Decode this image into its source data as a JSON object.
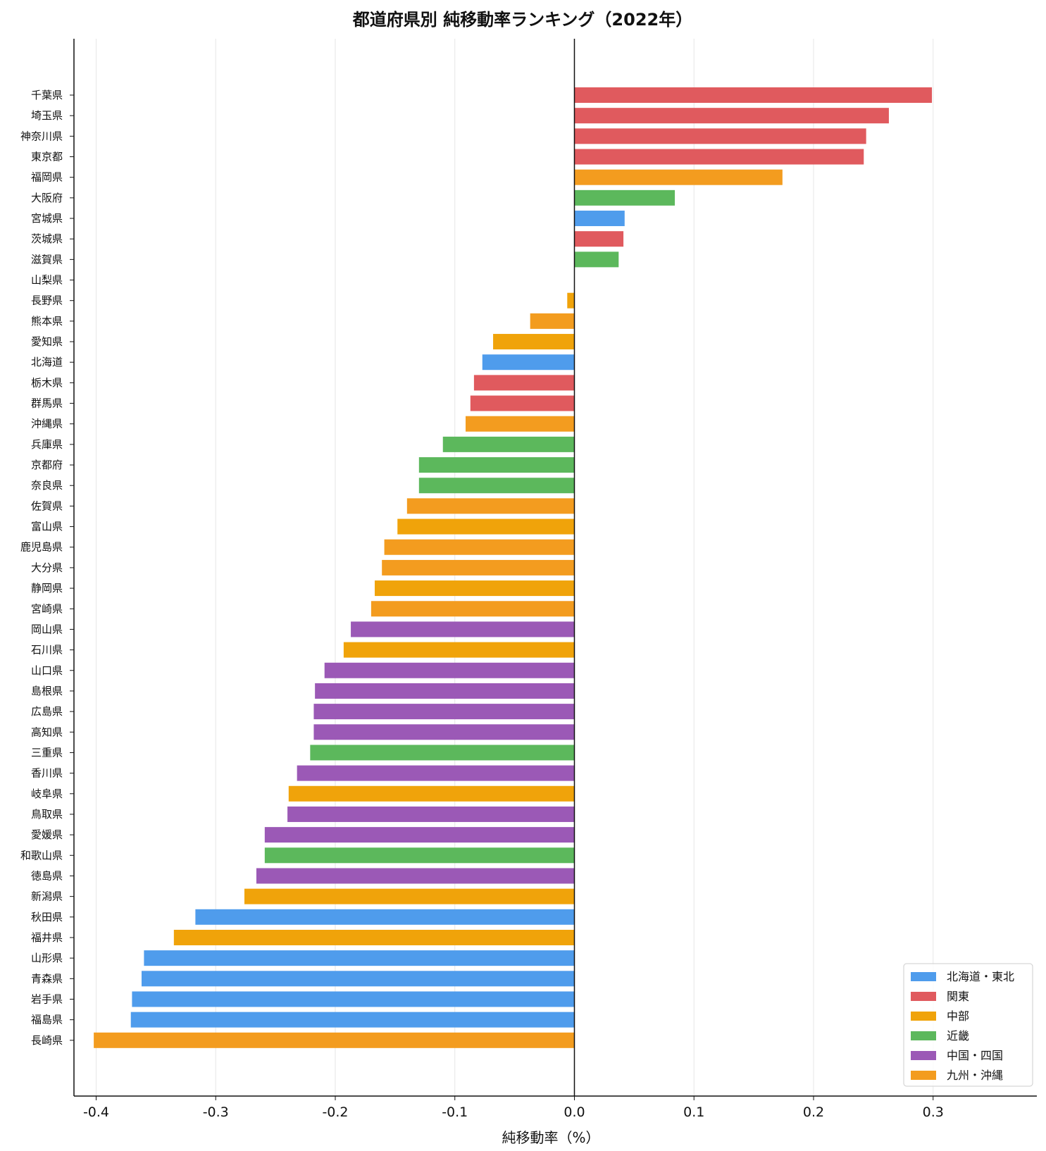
{
  "chart_data": {
    "type": "bar",
    "orientation": "horizontal",
    "title": "都道府県別 純移動率ランキング（2022年）",
    "xlabel": "純移動率（%）",
    "ylabel": "",
    "xlim": [
      -0.44,
      0.335
    ],
    "xticks": [
      -0.4,
      -0.3,
      -0.2,
      -0.1,
      0.0,
      0.1,
      0.2,
      0.3
    ],
    "xtick_labels": [
      "-0.4",
      "-0.3",
      "-0.2",
      "-0.1",
      "0.0",
      "0.1",
      "0.2",
      "0.3"
    ],
    "grid": "vertical",
    "legend_position": "bottom-right",
    "legend": [
      {
        "name": "北海道・東北",
        "color": "#4f9cec"
      },
      {
        "name": "関東",
        "color": "#e05a5e"
      },
      {
        "name": "中部",
        "color": "#f0a30a"
      },
      {
        "name": "近畿",
        "color": "#5cb85c"
      },
      {
        "name": "中国・四国",
        "color": "#9b59b6"
      },
      {
        "name": "九州・沖縄",
        "color": "#f39c1f"
      }
    ],
    "categories": [
      "千葉県",
      "埼玉県",
      "神奈川県",
      "東京都",
      "福岡県",
      "大阪府",
      "宮城県",
      "茨城県",
      "滋賀県",
      "山梨県",
      "長野県",
      "熊本県",
      "愛知県",
      "北海道",
      "栃木県",
      "群馬県",
      "沖縄県",
      "兵庫県",
      "京都府",
      "奈良県",
      "佐賀県",
      "富山県",
      "鹿児島県",
      "大分県",
      "静岡県",
      "宮崎県",
      "岡山県",
      "石川県",
      "山口県",
      "島根県",
      "広島県",
      "高知県",
      "三重県",
      "香川県",
      "岐阜県",
      "鳥取県",
      "愛媛県",
      "和歌山県",
      "徳島県",
      "新潟県",
      "秋田県",
      "福井県",
      "山形県",
      "青森県",
      "岩手県",
      "福島県",
      "長崎県"
    ],
    "values": [
      0.299,
      0.263,
      0.244,
      0.242,
      0.174,
      0.084,
      0.042,
      0.041,
      0.037,
      0.0,
      -0.006,
      -0.037,
      -0.068,
      -0.077,
      -0.084,
      -0.087,
      -0.091,
      -0.11,
      -0.13,
      -0.13,
      -0.14,
      -0.148,
      -0.159,
      -0.161,
      -0.167,
      -0.17,
      -0.187,
      -0.193,
      -0.209,
      -0.217,
      -0.218,
      -0.218,
      -0.221,
      -0.232,
      -0.239,
      -0.24,
      -0.259,
      -0.259,
      -0.266,
      -0.276,
      -0.317,
      -0.335,
      -0.36,
      -0.362,
      -0.37,
      -0.371,
      -0.402
    ],
    "regions": [
      "関東",
      "関東",
      "関東",
      "関東",
      "九州・沖縄",
      "近畿",
      "北海道・東北",
      "関東",
      "近畿",
      "中部",
      "中部",
      "九州・沖縄",
      "中部",
      "北海道・東北",
      "関東",
      "関東",
      "九州・沖縄",
      "近畿",
      "近畿",
      "近畿",
      "九州・沖縄",
      "中部",
      "九州・沖縄",
      "九州・沖縄",
      "中部",
      "九州・沖縄",
      "中国・四国",
      "中部",
      "中国・四国",
      "中国・四国",
      "中国・四国",
      "中国・四国",
      "近畿",
      "中国・四国",
      "中部",
      "中国・四国",
      "中国・四国",
      "近畿",
      "中国・四国",
      "中部",
      "北海道・東北",
      "中部",
      "北海道・東北",
      "北海道・東北",
      "北海道・東北",
      "北海道・東北",
      "九州・沖縄"
    ]
  }
}
